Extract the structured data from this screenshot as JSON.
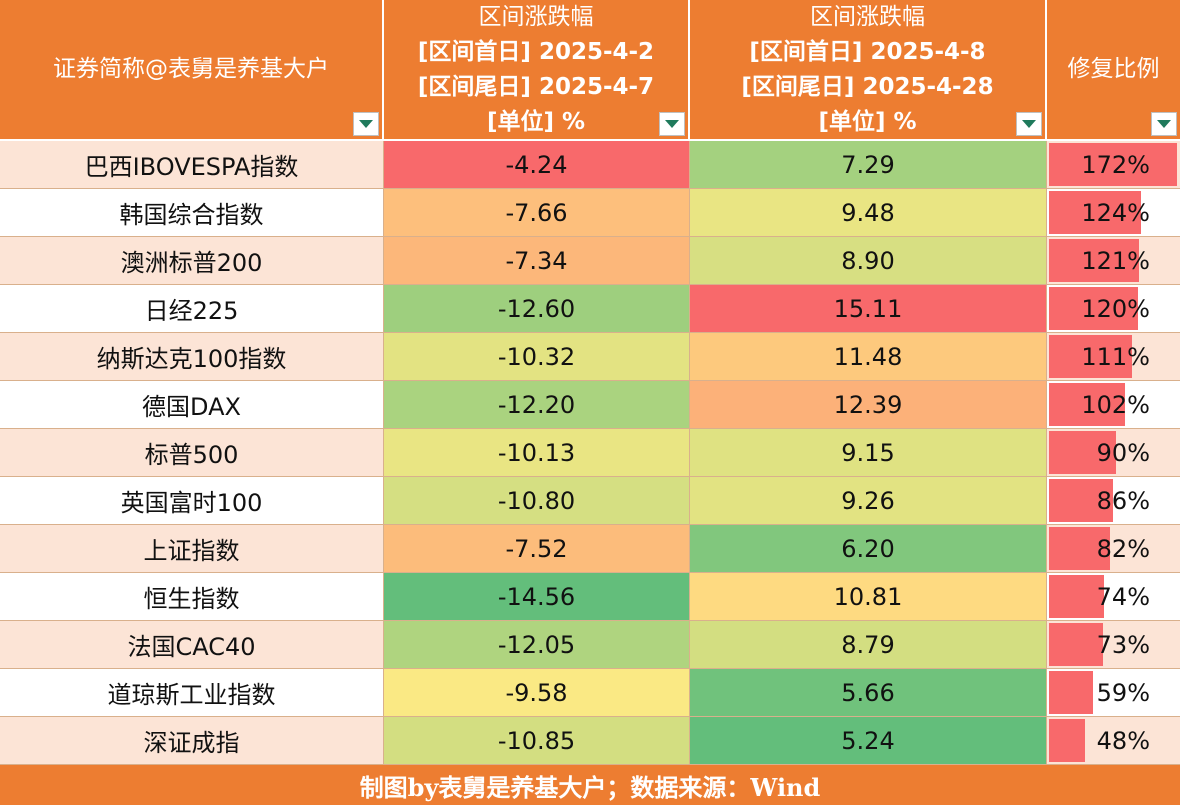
{
  "table": {
    "headers": [
      {
        "lines": [
          "证券简称@表舅是养基大户"
        ]
      },
      {
        "lines": [
          "区间涨跌幅",
          "[区间首日] 2025-4-2",
          "[区间尾日] 2025-4-7",
          "[单位] %"
        ]
      },
      {
        "lines": [
          "区间涨跌幅",
          "[区间首日] 2025-4-8",
          "[区间尾日] 2025-4-28",
          "[单位] %"
        ]
      },
      {
        "lines": [
          "修复比例"
        ]
      }
    ],
    "filter_icon": "dropdown-triangle-icon",
    "colors": {
      "header_bg": "#ED7D31",
      "row_alt_bg": "#FCE4D6",
      "ratio_bar": "#F8696B",
      "scale_red": "#F8696B",
      "scale_yellow": "#FFEB84",
      "scale_green": "#63BE7B"
    },
    "rows": [
      {
        "name": "巴西IBOVESPA指数",
        "chg1": "-4.24",
        "chg2": "7.29",
        "ratio": "172%"
      },
      {
        "name": "韩国综合指数",
        "chg1": "-7.66",
        "chg2": "9.48",
        "ratio": "124%"
      },
      {
        "name": "澳洲标普200",
        "chg1": "-7.34",
        "chg2": "8.90",
        "ratio": "121%"
      },
      {
        "name": "日经225",
        "chg1": "-12.60",
        "chg2": "15.11",
        "ratio": "120%"
      },
      {
        "name": "纳斯达克100指数",
        "chg1": "-10.32",
        "chg2": "11.48",
        "ratio": "111%"
      },
      {
        "name": "德国DAX",
        "chg1": "-12.20",
        "chg2": "12.39",
        "ratio": "102%"
      },
      {
        "name": "标普500",
        "chg1": "-10.13",
        "chg2": "9.15",
        "ratio": "90%"
      },
      {
        "name": "英国富时100",
        "chg1": "-10.80",
        "chg2": "9.26",
        "ratio": "86%"
      },
      {
        "name": "上证指数",
        "chg1": "-7.52",
        "chg2": "6.20",
        "ratio": "82%"
      },
      {
        "name": "恒生指数",
        "chg1": "-14.56",
        "chg2": "10.81",
        "ratio": "74%"
      },
      {
        "name": "法国CAC40",
        "chg1": "-12.05",
        "chg2": "8.79",
        "ratio": "73%"
      },
      {
        "name": "道琼斯工业指数",
        "chg1": "-9.58",
        "chg2": "5.66",
        "ratio": "59%"
      },
      {
        "name": "深证成指",
        "chg1": "-10.85",
        "chg2": "5.24",
        "ratio": "48%"
      }
    ]
  },
  "footer": {
    "text": "制图by表舅是养基大户；数据来源：Wind"
  }
}
